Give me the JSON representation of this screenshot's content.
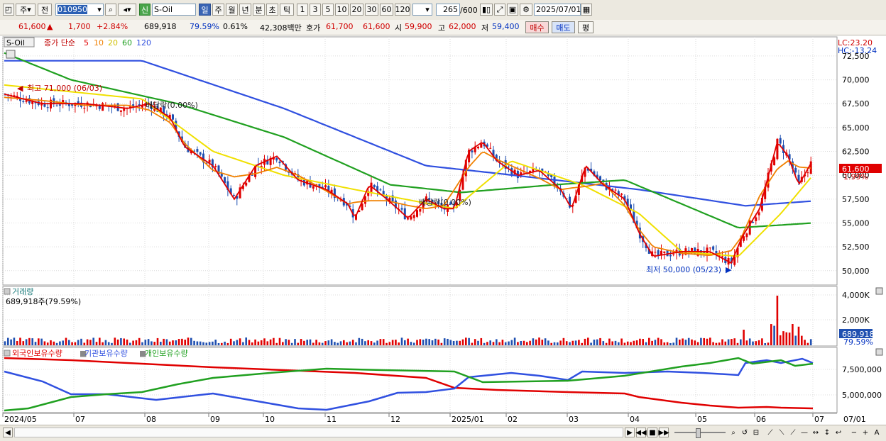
{
  "toolbar": {
    "market_type": "주",
    "compare_mode": "전",
    "code": "010950",
    "name_badge": "신",
    "stock_name": "S-Oil",
    "periods": [
      "일",
      "주",
      "월",
      "년",
      "분",
      "초",
      "틱"
    ],
    "numbers": [
      "1",
      "3",
      "5",
      "10",
      "20",
      "30",
      "60",
      "120"
    ],
    "count": "265",
    "count_total": "/600",
    "date": "2025/07/01"
  },
  "quote": {
    "price": "61,600",
    "change": "1,700",
    "change_pct": "+2.84%",
    "volume": "689,918",
    "vol_ratio": "79.59%",
    "turnover": "0.61%",
    "amount": "42,308백만",
    "ask_label": "호가",
    "ask": "61,700",
    "bid": "61,600",
    "open_label": "시",
    "open": "59,900",
    "high_label": "고",
    "high": "62,000",
    "low_label": "저",
    "low": "59,400",
    "buy_button": "매수",
    "sell_button": "매도",
    "eval_button": "평"
  },
  "price_panel": {
    "stock_label": "S-Oil",
    "indicator_label": "종가 단순",
    "ma_periods": [
      "5",
      "10",
      "20",
      "60",
      "120"
    ],
    "ma_colors": [
      "#e00000",
      "#f08000",
      "#f0e000",
      "#20a020",
      "#3050e0"
    ],
    "lc": "LC:23.20",
    "hc": "HC:-13.24",
    "y_ticks": [
      "72,500",
      "70,000",
      "67,500",
      "65,000",
      "62,500",
      "60,000",
      "57,500",
      "55,000",
      "52,500",
      "50,000"
    ],
    "current_price": "61,600",
    "current_pct": "1.99%",
    "high_annotation": "최고 71,000 (06/03)",
    "low_annotation": "최저 50,000 (05/23)",
    "dividend_1": "배당락(0.00%)",
    "dividend_2": "배당락(0.00%)"
  },
  "volume_panel": {
    "title": "거래량",
    "value": "689,918주(79.59%)",
    "y_ticks": [
      "4,000K",
      "2,000K"
    ],
    "current": "689,918",
    "current_pct": "79.59%"
  },
  "holding_panel": {
    "legend": [
      "외국인보유수량",
      "기관보유수량",
      "개인보유수량"
    ],
    "legend_colors": [
      "#e00000",
      "#3050e0",
      "#20a020"
    ],
    "y_ticks": [
      "7,500,000",
      "5,000,000"
    ]
  },
  "x_axis": [
    "2024/05",
    "07",
    "08",
    "09",
    "10",
    "11",
    "12",
    "2025/01",
    "02",
    "03",
    "04",
    "05",
    "06",
    "07",
    "07/01"
  ],
  "chart_data": {
    "type": "candlestick",
    "price_range": [
      48500,
      74500
    ],
    "ma_lines_approx": {
      "ma120": [
        [
          0,
          72000
        ],
        [
          200,
          72000
        ],
        [
          400,
          67000
        ],
        [
          600,
          61000
        ],
        [
          700,
          60200
        ],
        [
          900,
          58500
        ],
        [
          1050,
          56800
        ],
        [
          1145,
          57300
        ]
      ],
      "ma60": [
        [
          0,
          73000
        ],
        [
          100,
          70000
        ],
        [
          250,
          67500
        ],
        [
          400,
          64000
        ],
        [
          550,
          59000
        ],
        [
          650,
          58200
        ],
        [
          780,
          59000
        ],
        [
          880,
          59500
        ],
        [
          960,
          57000
        ],
        [
          1040,
          54500
        ],
        [
          1145,
          55000
        ]
      ],
      "ma20": [
        [
          0,
          69500
        ],
        [
          200,
          68000
        ],
        [
          300,
          62500
        ],
        [
          400,
          60000
        ],
        [
          500,
          58500
        ],
        [
          640,
          56500
        ],
        [
          720,
          61500
        ],
        [
          820,
          59000
        ],
        [
          900,
          56000
        ],
        [
          960,
          52000
        ],
        [
          1040,
          51500
        ],
        [
          1100,
          56000
        ],
        [
          1145,
          60000
        ]
      ]
    }
  }
}
